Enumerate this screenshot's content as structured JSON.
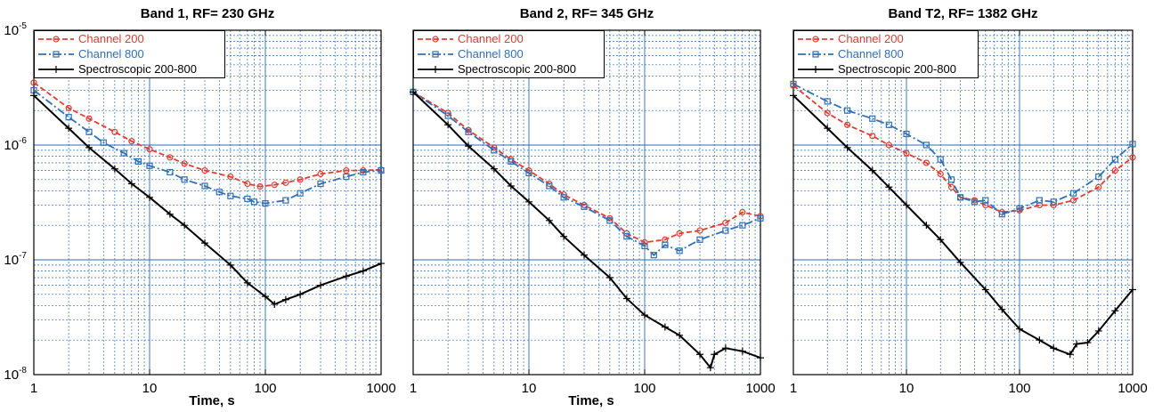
{
  "chart_data": [
    {
      "type": "line",
      "title": "Band 1, RF= 230 GHz",
      "xlabel": "Time, s",
      "ylabel": "",
      "xscale": "log",
      "yscale": "log",
      "xlim": [
        1,
        1000
      ],
      "ylim": [
        1e-08,
        1e-05
      ],
      "grid": true,
      "legend": "top-left",
      "x_ticks": [
        "1",
        "10",
        "100",
        "1000"
      ],
      "y_ticks": [
        {
          "base": "10",
          "exp": "-8"
        },
        {
          "base": "10",
          "exp": "-7"
        },
        {
          "base": "10",
          "exp": "-6"
        },
        {
          "base": "10",
          "exp": "-5"
        }
      ],
      "series": [
        {
          "name": "Channel 200",
          "color": "#e03c31",
          "marker": "circle",
          "dash": "dashed",
          "points": [
            [
              1,
              3.5e-06
            ],
            [
              2,
              2.1e-06
            ],
            [
              3,
              1.7e-06
            ],
            [
              5,
              1.3e-06
            ],
            [
              7,
              1.08e-06
            ],
            [
              10,
              9.2e-07
            ],
            [
              15,
              7.8e-07
            ],
            [
              20,
              6.9e-07
            ],
            [
              30,
              6e-07
            ],
            [
              50,
              5.3e-07
            ],
            [
              70,
              4.6e-07
            ],
            [
              90,
              4.35e-07
            ],
            [
              120,
              4.5e-07
            ],
            [
              150,
              4.7e-07
            ],
            [
              200,
              5e-07
            ],
            [
              300,
              5.6e-07
            ],
            [
              500,
              6e-07
            ],
            [
              700,
              6e-07
            ],
            [
              1000,
              6.1e-07
            ]
          ]
        },
        {
          "name": "Channel 800",
          "color": "#2f6fb3",
          "marker": "square",
          "dash": "dashdot",
          "points": [
            [
              1,
              3e-06
            ],
            [
              2,
              1.75e-06
            ],
            [
              3,
              1.3e-06
            ],
            [
              4,
              1.05e-06
            ],
            [
              6,
              8.5e-07
            ],
            [
              8,
              7.2e-07
            ],
            [
              10,
              6.6e-07
            ],
            [
              15,
              5.8e-07
            ],
            [
              20,
              5e-07
            ],
            [
              30,
              4.4e-07
            ],
            [
              40,
              3.9e-07
            ],
            [
              50,
              3.6e-07
            ],
            [
              70,
              3.4e-07
            ],
            [
              80,
              3.2e-07
            ],
            [
              100,
              3.1e-07
            ],
            [
              150,
              3.3e-07
            ],
            [
              200,
              3.8e-07
            ],
            [
              300,
              4.6e-07
            ],
            [
              500,
              5.3e-07
            ],
            [
              700,
              5.8e-07
            ],
            [
              1000,
              6e-07
            ]
          ]
        },
        {
          "name": "Spectroscopic 200-800",
          "color": "#000000",
          "marker": "plus",
          "dash": "solid",
          "points": [
            [
              1,
              2.7e-06
            ],
            [
              2,
              1.4e-06
            ],
            [
              3,
              9.5e-07
            ],
            [
              5,
              6.2e-07
            ],
            [
              7,
              4.6e-07
            ],
            [
              10,
              3.5e-07
            ],
            [
              15,
              2.5e-07
            ],
            [
              20,
              2e-07
            ],
            [
              30,
              1.4e-07
            ],
            [
              50,
              9e-08
            ],
            [
              70,
              6.3e-08
            ],
            [
              100,
              4.8e-08
            ],
            [
              120,
              4.1e-08
            ],
            [
              150,
              4.5e-08
            ],
            [
              200,
              5e-08
            ],
            [
              300,
              6e-08
            ],
            [
              500,
              7.2e-08
            ],
            [
              700,
              8e-08
            ],
            [
              1000,
              9.3e-08
            ]
          ]
        }
      ]
    },
    {
      "type": "line",
      "title": "Band 2, RF= 345 GHz",
      "xlabel": "Time, s",
      "ylabel": "",
      "xscale": "log",
      "yscale": "log",
      "xlim": [
        1,
        1000
      ],
      "ylim": [
        1e-08,
        1e-05
      ],
      "grid": true,
      "legend": "top-left",
      "x_ticks": [
        "1",
        "10",
        "100",
        "1000"
      ],
      "y_ticks": [],
      "series": [
        {
          "name": "Channel 200",
          "color": "#e03c31",
          "marker": "circle",
          "dash": "dashed",
          "points": [
            [
              1,
              2.9e-06
            ],
            [
              2,
              1.9e-06
            ],
            [
              3,
              1.35e-06
            ],
            [
              5,
              9.5e-07
            ],
            [
              7,
              7.5e-07
            ],
            [
              10,
              6e-07
            ],
            [
              15,
              4.6e-07
            ],
            [
              20,
              3.7e-07
            ],
            [
              30,
              3e-07
            ],
            [
              50,
              2.3e-07
            ],
            [
              70,
              1.7e-07
            ],
            [
              100,
              1.42e-07
            ],
            [
              150,
              1.5e-07
            ],
            [
              200,
              1.7e-07
            ],
            [
              300,
              1.8e-07
            ],
            [
              500,
              2.1e-07
            ],
            [
              700,
              2.6e-07
            ],
            [
              1000,
              2.4e-07
            ]
          ]
        },
        {
          "name": "Channel 800",
          "color": "#2f6fb3",
          "marker": "square",
          "dash": "dashdot",
          "points": [
            [
              1,
              2.9e-06
            ],
            [
              2,
              1.8e-06
            ],
            [
              3,
              1.3e-06
            ],
            [
              5,
              9e-07
            ],
            [
              7,
              7.2e-07
            ],
            [
              10,
              5.7e-07
            ],
            [
              15,
              4.4e-07
            ],
            [
              20,
              3.5e-07
            ],
            [
              30,
              2.9e-07
            ],
            [
              50,
              2.2e-07
            ],
            [
              70,
              1.6e-07
            ],
            [
              100,
              1.32e-07
            ],
            [
              120,
              1.1e-07
            ],
            [
              150,
              1.35e-07
            ],
            [
              200,
              1.2e-07
            ],
            [
              300,
              1.5e-07
            ],
            [
              500,
              1.8e-07
            ],
            [
              700,
              2e-07
            ],
            [
              1000,
              2.3e-07
            ]
          ]
        },
        {
          "name": "Spectroscopic 200-800",
          "color": "#000000",
          "marker": "plus",
          "dash": "solid",
          "points": [
            [
              1,
              2.9e-06
            ],
            [
              2,
              1.5e-06
            ],
            [
              3,
              9.8e-07
            ],
            [
              5,
              6.2e-07
            ],
            [
              7,
              4.4e-07
            ],
            [
              10,
              3.2e-07
            ],
            [
              15,
              2.2e-07
            ],
            [
              20,
              1.6e-07
            ],
            [
              30,
              1.1e-07
            ],
            [
              50,
              7e-08
            ],
            [
              70,
              4.6e-08
            ],
            [
              100,
              3.3e-08
            ],
            [
              150,
              2.6e-08
            ],
            [
              200,
              2.2e-08
            ],
            [
              300,
              1.5e-08
            ],
            [
              370,
              1.15e-08
            ],
            [
              400,
              1.5e-08
            ],
            [
              500,
              1.7e-08
            ],
            [
              700,
              1.6e-08
            ],
            [
              1000,
              1.4e-08
            ]
          ]
        }
      ]
    },
    {
      "type": "line",
      "title": "Band T2, RF= 1382 GHz",
      "xlabel": "",
      "ylabel": "",
      "xscale": "log",
      "yscale": "log",
      "xlim": [
        1,
        1000
      ],
      "ylim": [
        1e-08,
        1e-05
      ],
      "grid": true,
      "legend": "top-left",
      "x_ticks": [
        "1",
        "10",
        "100",
        "1000"
      ],
      "y_ticks": [],
      "series": [
        {
          "name": "Channel 200",
          "color": "#e03c31",
          "marker": "circle",
          "dash": "dashed",
          "points": [
            [
              1,
              3.3e-06
            ],
            [
              2,
              1.9e-06
            ],
            [
              3,
              1.5e-06
            ],
            [
              5,
              1.2e-06
            ],
            [
              7,
              1e-06
            ],
            [
              10,
              8.5e-07
            ],
            [
              15,
              7e-07
            ],
            [
              20,
              5.6e-07
            ],
            [
              25,
              4.3e-07
            ],
            [
              30,
              3.5e-07
            ],
            [
              40,
              3.3e-07
            ],
            [
              50,
              3e-07
            ],
            [
              70,
              2.6e-07
            ],
            [
              100,
              2.7e-07
            ],
            [
              150,
              3e-07
            ],
            [
              200,
              3e-07
            ],
            [
              300,
              3.3e-07
            ],
            [
              500,
              4.3e-07
            ],
            [
              700,
              6e-07
            ],
            [
              1000,
              7.8e-07
            ]
          ]
        },
        {
          "name": "Channel 800",
          "color": "#2f6fb3",
          "marker": "square",
          "dash": "dashdot",
          "points": [
            [
              1,
              3.4e-06
            ],
            [
              2,
              2.4e-06
            ],
            [
              3,
              2e-06
            ],
            [
              5,
              1.7e-06
            ],
            [
              7,
              1.5e-06
            ],
            [
              10,
              1.25e-06
            ],
            [
              15,
              1e-06
            ],
            [
              20,
              7.5e-07
            ],
            [
              25,
              5e-07
            ],
            [
              30,
              3.5e-07
            ],
            [
              40,
              3.2e-07
            ],
            [
              50,
              3.3e-07
            ],
            [
              70,
              2.5e-07
            ],
            [
              100,
              2.8e-07
            ],
            [
              150,
              3.3e-07
            ],
            [
              200,
              3.2e-07
            ],
            [
              300,
              3.8e-07
            ],
            [
              500,
              5.3e-07
            ],
            [
              700,
              7.5e-07
            ],
            [
              1000,
              1.02e-06
            ]
          ]
        },
        {
          "name": "Spectroscopic 200-800",
          "color": "#000000",
          "marker": "plus",
          "dash": "solid",
          "points": [
            [
              1,
              2.7e-06
            ],
            [
              2,
              1.4e-06
            ],
            [
              3,
              9.5e-07
            ],
            [
              5,
              6e-07
            ],
            [
              7,
              4.3e-07
            ],
            [
              10,
              3e-07
            ],
            [
              15,
              2e-07
            ],
            [
              20,
              1.5e-07
            ],
            [
              30,
              9.5e-08
            ],
            [
              50,
              5.5e-08
            ],
            [
              70,
              3.7e-08
            ],
            [
              100,
              2.5e-08
            ],
            [
              150,
              2e-08
            ],
            [
              200,
              1.7e-08
            ],
            [
              280,
              1.5e-08
            ],
            [
              320,
              1.85e-08
            ],
            [
              400,
              1.9e-08
            ],
            [
              500,
              2.4e-08
            ],
            [
              700,
              3.6e-08
            ],
            [
              1000,
              5.5e-08
            ]
          ]
        }
      ]
    }
  ]
}
